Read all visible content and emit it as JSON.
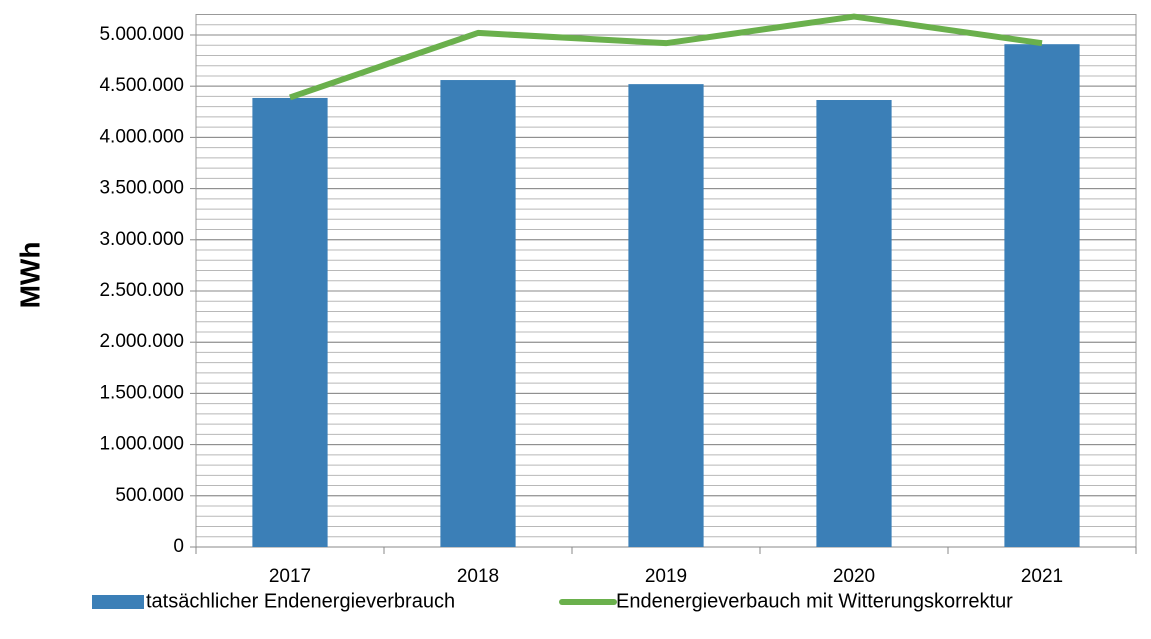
{
  "chart_data": {
    "type": "bar_line",
    "y_label": "MWh",
    "categories": [
      "2017",
      "2018",
      "2019",
      "2020",
      "2021"
    ],
    "series": [
      {
        "name": "tatsächlicher Endenergieverbrauch",
        "type": "bar",
        "color": "#3b7fb7",
        "values": [
          4385000,
          4560000,
          4520000,
          4365000,
          4910000
        ]
      },
      {
        "name": "Endenergieverbauch mit Witterungskorrektur",
        "type": "line",
        "color": "#6ab04c",
        "values": [
          4390000,
          5020000,
          4920000,
          5180000,
          4920000
        ]
      }
    ],
    "ylim": [
      0,
      5200000
    ],
    "yticks": [
      0,
      {
        "value": 500000,
        "label": "500.000"
      },
      {
        "value": 1000000,
        "label": "1.000.000"
      },
      {
        "value": 1500000,
        "label": "1.500.000"
      },
      {
        "value": 2000000,
        "label": "2.000.000"
      },
      {
        "value": 2500000,
        "label": "2.500.000"
      },
      {
        "value": 3000000,
        "label": "3.000.000"
      },
      {
        "value": 3500000,
        "label": "3.500.000"
      },
      {
        "value": 4000000,
        "label": "4.000.000"
      },
      {
        "value": 4500000,
        "label": "4.500.000"
      },
      {
        "value": 5000000,
        "label": "5.000.000"
      }
    ],
    "grid": true,
    "legend": "bottom"
  }
}
